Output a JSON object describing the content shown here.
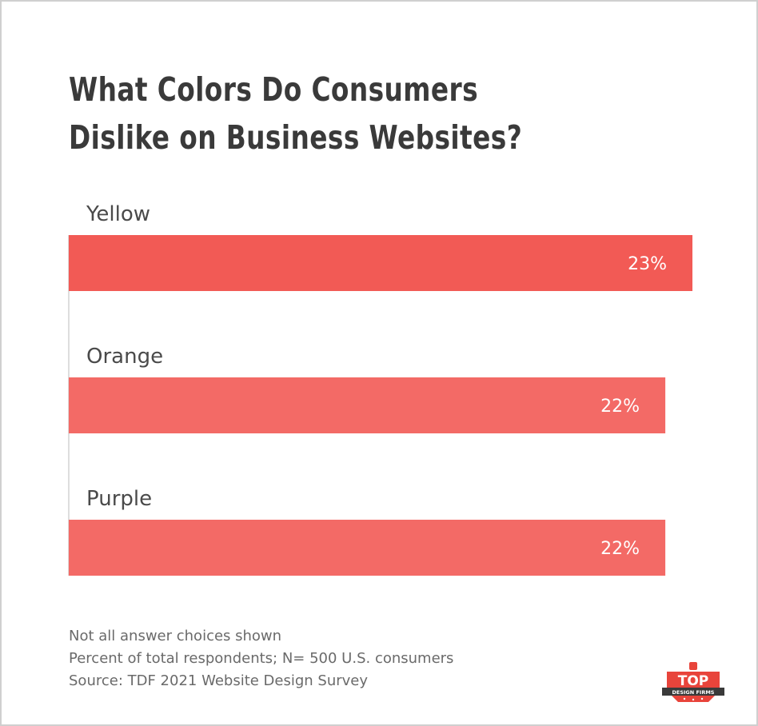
{
  "chart_data": {
    "type": "bar",
    "orientation": "horizontal",
    "title": "What Colors Do Consumers Dislike on Business Websites?",
    "categories": [
      "Yellow",
      "Orange",
      "Purple"
    ],
    "values": [
      23,
      22,
      22
    ],
    "value_labels": [
      "23%",
      "22%",
      "22%"
    ],
    "bar_colors": [
      "#f25a55",
      "#f36a66",
      "#f36a66"
    ],
    "grid": false,
    "legend": "none"
  },
  "footnotes": {
    "line1": "Not all answer choices shown",
    "line2": "Percent of total respondents; N= 500 U.S. consumers",
    "line3": "Source: TDF 2021 Website Design Survey"
  },
  "logo": {
    "top_text": "TOP",
    "bottom_text": "DESIGN FIRMS",
    "color": "#e8443b"
  }
}
